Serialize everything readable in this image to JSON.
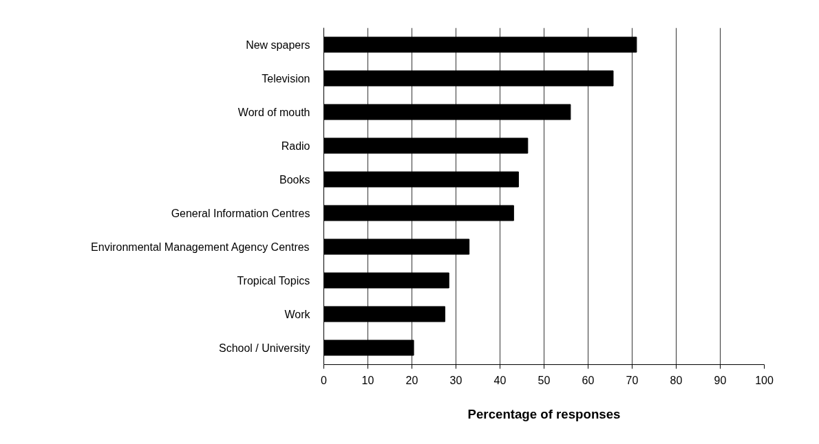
{
  "chart_data": {
    "type": "bar",
    "orientation": "horizontal",
    "xlabel": "Percentage of responses",
    "categories": [
      "New spapers",
      "Television",
      "Word of mouth",
      "Radio",
      "Books",
      "General Information Centres",
      "Environmental Management Agency Centres",
      "Tropical Topics",
      "Work",
      "School / University"
    ],
    "values": [
      71.0,
      65.7,
      56.0,
      46.3,
      44.2,
      43.1,
      33.0,
      28.4,
      27.5,
      20.4
    ],
    "color": "#000000",
    "xlim": [
      0,
      100
    ],
    "xticks": [
      0,
      10,
      20,
      30,
      40,
      50,
      60,
      70,
      80,
      90,
      100
    ],
    "grid": "x"
  }
}
